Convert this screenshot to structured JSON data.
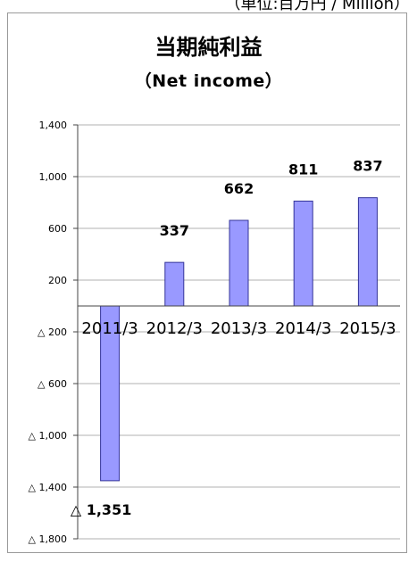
{
  "unit_note": "（単位:百万円 / Million）",
  "chart_data": {
    "type": "bar",
    "title": "当期純利益",
    "subtitle": "（Net  income）",
    "categories": [
      "2011/3",
      "2012/3",
      "2013/3",
      "2014/3",
      "2015/3"
    ],
    "values": [
      -1351,
      337,
      662,
      811,
      837
    ],
    "value_labels": [
      "△ 1,351",
      "337",
      "662",
      "811",
      "837"
    ],
    "ylim": [
      -1800,
      1400
    ],
    "yticks": [
      1400,
      1000,
      600,
      200,
      -200,
      -600,
      -1000,
      -1400,
      -1800
    ],
    "ytick_labels": [
      "1,400",
      "1,000",
      "600",
      "200",
      "△ 200",
      "△ 600",
      "△ 1,000",
      "△ 1,400",
      "△ 1,800"
    ],
    "grid": true,
    "bar_color": "#9999ff",
    "bar_edge_color": "#333399"
  }
}
